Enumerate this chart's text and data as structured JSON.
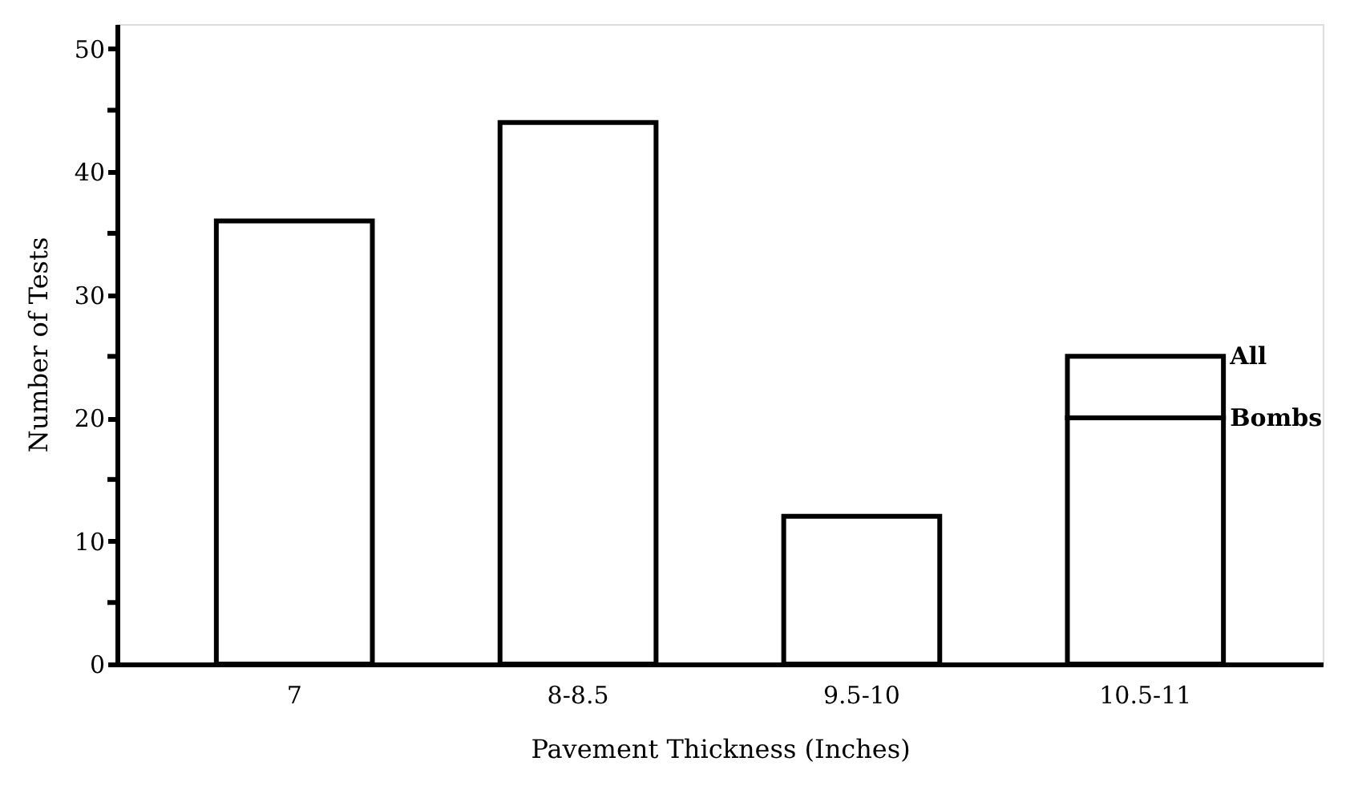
{
  "chart_data": {
    "type": "bar",
    "stacked": true,
    "xlabel": "Pavement Thickness (Inches)",
    "ylabel": "Number of Tests",
    "categories": [
      "7",
      "8-8.5",
      "9.5-10",
      "10.5-11"
    ],
    "series": [
      {
        "color": "#ffffff",
        "values": [
          36,
          44,
          12,
          20
        ]
      },
      {
        "color": "#ffffff",
        "values": [
          null,
          null,
          null,
          5
        ]
      }
    ],
    "ylim": [
      0,
      52
    ],
    "yticks": [
      0,
      {
        "value": 5,
        "label": null
      },
      10,
      {
        "value": 15,
        "label": null
      },
      20,
      {
        "value": 25,
        "label": null
      },
      30,
      {
        "value": 35,
        "label": null
      },
      40,
      {
        "value": 45,
        "label": null
      },
      50
    ],
    "grid": false,
    "annotations": [
      "All",
      "Bombs"
    ]
  }
}
